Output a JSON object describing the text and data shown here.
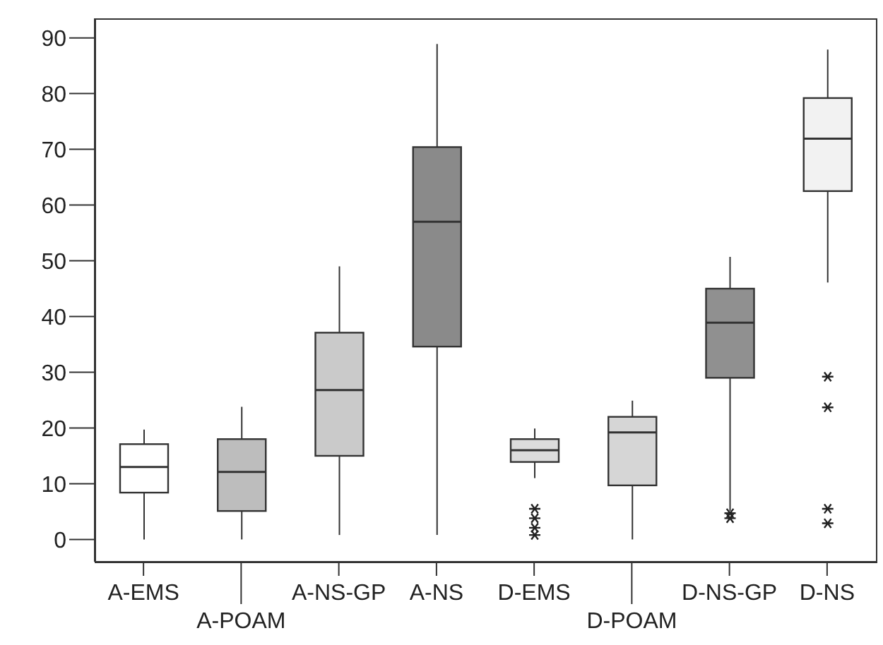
{
  "chart_data": {
    "type": "box",
    "categories": [
      "A-EMS",
      "A-POAM",
      "A-NS-GP",
      "A-NS",
      "D-EMS",
      "D-POAM",
      "D-NS-GP",
      "D-NS"
    ],
    "colors": [
      "#ffffff",
      "#bdbdbd",
      "#cacaca",
      "#8a8a8a",
      "#dcdcdc",
      "#d6d6d6",
      "#909090",
      "#f2f2f2"
    ],
    "boxes": [
      {
        "low": 0,
        "q1": 8.4,
        "median": 13,
        "q3": 17.1,
        "high": 19.7
      },
      {
        "low": 0,
        "q1": 5.1,
        "median": 12.1,
        "q3": 18,
        "high": 23.8
      },
      {
        "low": 0.8,
        "q1": 15,
        "median": 26.8,
        "q3": 37.1,
        "high": 49
      },
      {
        "low": 0.8,
        "q1": 34.6,
        "median": 57,
        "q3": 70.4,
        "high": 88.9
      },
      {
        "low": 11,
        "q1": 13.9,
        "median": 16,
        "q3": 18,
        "high": 19.9,
        "outliers": [
          5.5,
          3.8,
          2.1,
          0.8
        ]
      },
      {
        "low": 0,
        "q1": 9.7,
        "median": 19.2,
        "q3": 22,
        "high": 24.9
      },
      {
        "low": 5.1,
        "q1": 29,
        "median": 38.9,
        "q3": 45,
        "high": 50.7,
        "outliers": [
          4.7,
          3.8
        ]
      },
      {
        "low": 46.1,
        "q1": 62.5,
        "median": 71.9,
        "q3": 79.2,
        "high": 87.9,
        "outliers": [
          29.2,
          23.7,
          5.5,
          2.9
        ]
      }
    ],
    "ylim": [
      -4,
      93.5
    ],
    "yticks": [
      0,
      10,
      20,
      30,
      40,
      50,
      60,
      70,
      80,
      90
    ]
  }
}
